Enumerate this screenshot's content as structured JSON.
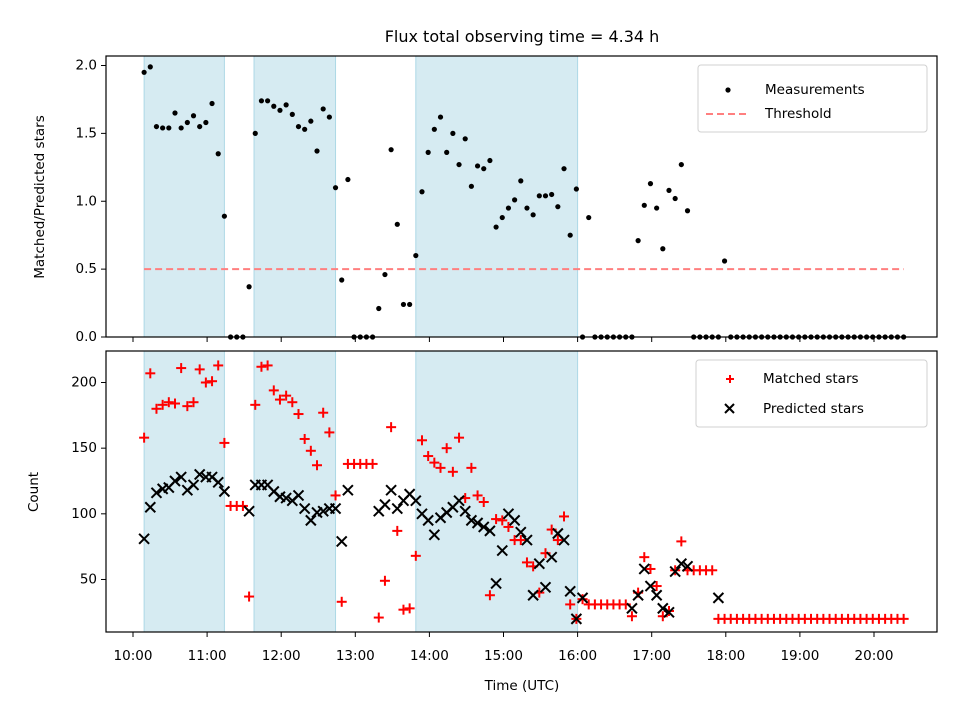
{
  "chart_data": [
    {
      "type": "scatter",
      "title": "Flux total observing time = 4.34 h",
      "xlabel": "",
      "ylabel": "Matched/Predicted stars",
      "ylim": [
        0,
        2.07
      ],
      "yticks": [
        "0.0",
        "0.5",
        "1.0",
        "1.5",
        "2.0"
      ],
      "ytick_values": [
        0,
        0.5,
        1.0,
        1.5,
        2.0
      ],
      "xlim_minutes_after_10": [
        -21.5,
        651
      ],
      "grid": false,
      "legend_position": "top-right",
      "shaded_intervals": [
        {
          "start": "10:09",
          "end": "11:14",
          "color": "#add8e6"
        },
        {
          "start": "11:38",
          "end": "12:44",
          "color": "#add8e6"
        },
        {
          "start": "13:49",
          "end": "16:00",
          "color": "#add8e6"
        }
      ],
      "series": [
        {
          "name": "Measurements",
          "marker": "dot",
          "color": "#000000",
          "start_time": "10:09",
          "interval_minutes": 5,
          "values": [
            1.95,
            1.99,
            1.55,
            1.54,
            1.54,
            1.65,
            1.54,
            1.58,
            1.63,
            1.55,
            1.58,
            1.72,
            1.35,
            0.89,
            0,
            0,
            0,
            0.37,
            1.5,
            1.74,
            1.74,
            1.7,
            1.67,
            1.71,
            1.64,
            1.55,
            1.53,
            1.59,
            1.37,
            1.68,
            1.62,
            1.1,
            0.42,
            1.16,
            0,
            0,
            0,
            0,
            0.21,
            0.46,
            1.38,
            0.83,
            0.24,
            0.24,
            0.6,
            1.07,
            1.36,
            1.53,
            1.62,
            1.36,
            1.5,
            1.27,
            1.46,
            1.11,
            1.26,
            1.24,
            1.3,
            0.81,
            0.88,
            0.95,
            1.01,
            1.15,
            0.95,
            0.9,
            1.04,
            1.04,
            1.05,
            0.96,
            1.24,
            0.75,
            1.09,
            0,
            0.88,
            0,
            0,
            0,
            0,
            0,
            0,
            0,
            0.71,
            0.97,
            1.13,
            0.95,
            0.65,
            1.08,
            1.02,
            1.27,
            0.93,
            0,
            0,
            0,
            0,
            0,
            0.56,
            0,
            0,
            0,
            0,
            0,
            0,
            0,
            0,
            0,
            0,
            0,
            0,
            0,
            0,
            0,
            0,
            0,
            0,
            0,
            0,
            0,
            0,
            0,
            0,
            0,
            0,
            0,
            0,
            0
          ]
        },
        {
          "name": "Threshold",
          "marker": "dashed-line",
          "color": "#ff7f7f",
          "value": 0.5,
          "start_time": "10:09",
          "end_time": "20:24"
        }
      ]
    },
    {
      "type": "scatter",
      "title": "",
      "xlabel": "Time (UTC)",
      "ylabel": "Count",
      "ylim": [
        10,
        224
      ],
      "yticks": [
        "50",
        "100",
        "150",
        "200"
      ],
      "ytick_values": [
        50,
        100,
        150,
        200
      ],
      "xticks": [
        "10:00",
        "11:00",
        "12:00",
        "13:00",
        "14:00",
        "15:00",
        "16:00",
        "17:00",
        "18:00",
        "19:00",
        "20:00"
      ],
      "xtick_minutes_after_10": [
        0,
        60,
        120,
        180,
        240,
        300,
        360,
        420,
        480,
        540,
        600
      ],
      "grid": false,
      "legend_position": "top-right",
      "series": [
        {
          "name": "Matched stars",
          "marker": "plus",
          "color": "#ff0000",
          "start_time": "10:09",
          "interval_minutes": 5,
          "values": [
            158,
            207,
            180,
            183,
            185,
            184,
            211,
            182,
            185,
            210,
            200,
            201,
            213,
            154,
            106,
            106,
            106,
            37,
            183,
            212,
            213,
            194,
            187,
            190,
            185,
            176,
            157,
            148,
            137,
            177,
            162,
            114,
            33,
            138,
            138,
            138,
            138,
            138,
            21,
            49,
            166,
            87,
            27,
            28,
            68,
            156,
            144,
            139,
            135,
            150,
            132,
            158,
            112,
            135,
            114,
            109,
            38,
            96,
            95,
            90,
            80,
            80,
            63,
            60,
            40,
            70,
            88,
            80,
            98,
            31,
            20,
            35,
            31,
            31,
            31,
            31,
            31,
            31,
            31,
            22,
            40,
            67,
            58,
            45,
            22,
            26,
            57,
            79,
            57,
            57,
            57,
            57,
            57,
            20,
            20,
            20,
            20,
            20,
            20,
            20,
            20,
            20,
            20,
            20,
            20,
            20,
            20,
            20,
            20,
            20,
            20,
            20,
            20,
            20,
            20,
            20,
            20,
            20,
            20,
            20,
            20,
            20,
            20,
            20
          ]
        },
        {
          "name": "Predicted stars",
          "marker": "x",
          "color": "#000000",
          "start_time": "10:09",
          "interval_minutes": 5,
          "values": [
            81,
            105,
            116,
            119,
            120,
            125,
            128,
            118,
            122,
            130,
            128,
            128,
            124,
            117,
            null,
            null,
            null,
            102,
            122,
            122,
            122,
            117,
            113,
            112,
            110,
            114,
            104,
            95,
            101,
            102,
            104,
            104,
            79,
            118,
            null,
            null,
            null,
            null,
            102,
            107,
            118,
            104,
            110,
            115,
            110,
            100,
            95,
            84,
            97,
            101,
            105,
            110,
            102,
            95,
            93,
            90,
            87,
            47,
            72,
            100,
            95,
            86,
            80,
            38,
            62,
            44,
            67,
            85,
            80,
            41,
            20,
            36,
            null,
            null,
            null,
            null,
            null,
            null,
            null,
            28,
            38,
            58,
            45,
            38,
            28,
            25,
            56,
            62,
            60,
            null,
            null,
            null,
            null,
            36,
            null,
            null,
            null,
            null,
            null,
            null,
            null,
            null,
            null,
            null,
            null,
            null,
            null,
            null,
            null,
            null,
            null,
            null,
            null,
            null,
            null,
            null,
            null,
            null,
            null,
            null,
            null,
            null,
            null,
            null
          ]
        }
      ]
    }
  ]
}
